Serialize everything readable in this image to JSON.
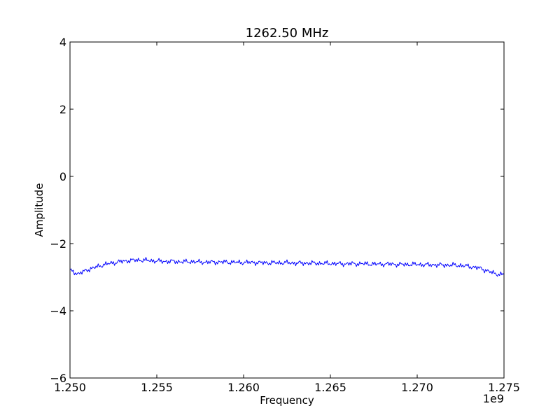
{
  "chart_data": {
    "type": "line",
    "title": "1262.50 MHz",
    "xlabel": "Frequency",
    "ylabel": "Amplitude",
    "x_offset_label": "1e9",
    "xlim": [
      1.25,
      1.275
    ],
    "ylim": [
      -6,
      4
    ],
    "x_ticks": [
      1.25,
      1.255,
      1.26,
      1.265,
      1.27,
      1.275
    ],
    "x_tick_labels": [
      "1.250",
      "1.255",
      "1.260",
      "1.265",
      "1.270",
      "1.275"
    ],
    "y_ticks": [
      -6,
      -4,
      -2,
      0,
      2,
      4
    ],
    "y_tick_labels": [
      "−6",
      "−4",
      "−2",
      "0",
      "2",
      "4"
    ],
    "grid": false,
    "series": [
      {
        "color": "#0000ff",
        "x": [
          1.25,
          1.2505,
          1.251,
          1.2515,
          1.252,
          1.2525,
          1.253,
          1.2535,
          1.254,
          1.2545,
          1.255,
          1.2555,
          1.256,
          1.2565,
          1.257,
          1.2575,
          1.258,
          1.2585,
          1.259,
          1.2595,
          1.26,
          1.2605,
          1.261,
          1.2615,
          1.262,
          1.2625,
          1.263,
          1.2635,
          1.264,
          1.2645,
          1.265,
          1.2655,
          1.266,
          1.2665,
          1.267,
          1.2675,
          1.268,
          1.2685,
          1.269,
          1.2695,
          1.27,
          1.2705,
          1.271,
          1.2715,
          1.272,
          1.2725,
          1.273,
          1.2735,
          1.274,
          1.2745,
          1.275
        ],
        "y": [
          -2.8,
          -2.9,
          -2.78,
          -2.7,
          -2.62,
          -2.57,
          -2.53,
          -2.5,
          -2.49,
          -2.5,
          -2.52,
          -2.53,
          -2.53,
          -2.54,
          -2.54,
          -2.55,
          -2.55,
          -2.55,
          -2.55,
          -2.56,
          -2.56,
          -2.56,
          -2.57,
          -2.57,
          -2.57,
          -2.57,
          -2.58,
          -2.58,
          -2.58,
          -2.59,
          -2.59,
          -2.6,
          -2.6,
          -2.6,
          -2.6,
          -2.61,
          -2.61,
          -2.61,
          -2.62,
          -2.62,
          -2.62,
          -2.63,
          -2.63,
          -2.64,
          -2.64,
          -2.65,
          -2.68,
          -2.72,
          -2.8,
          -2.9,
          -2.92
        ]
      }
    ]
  }
}
